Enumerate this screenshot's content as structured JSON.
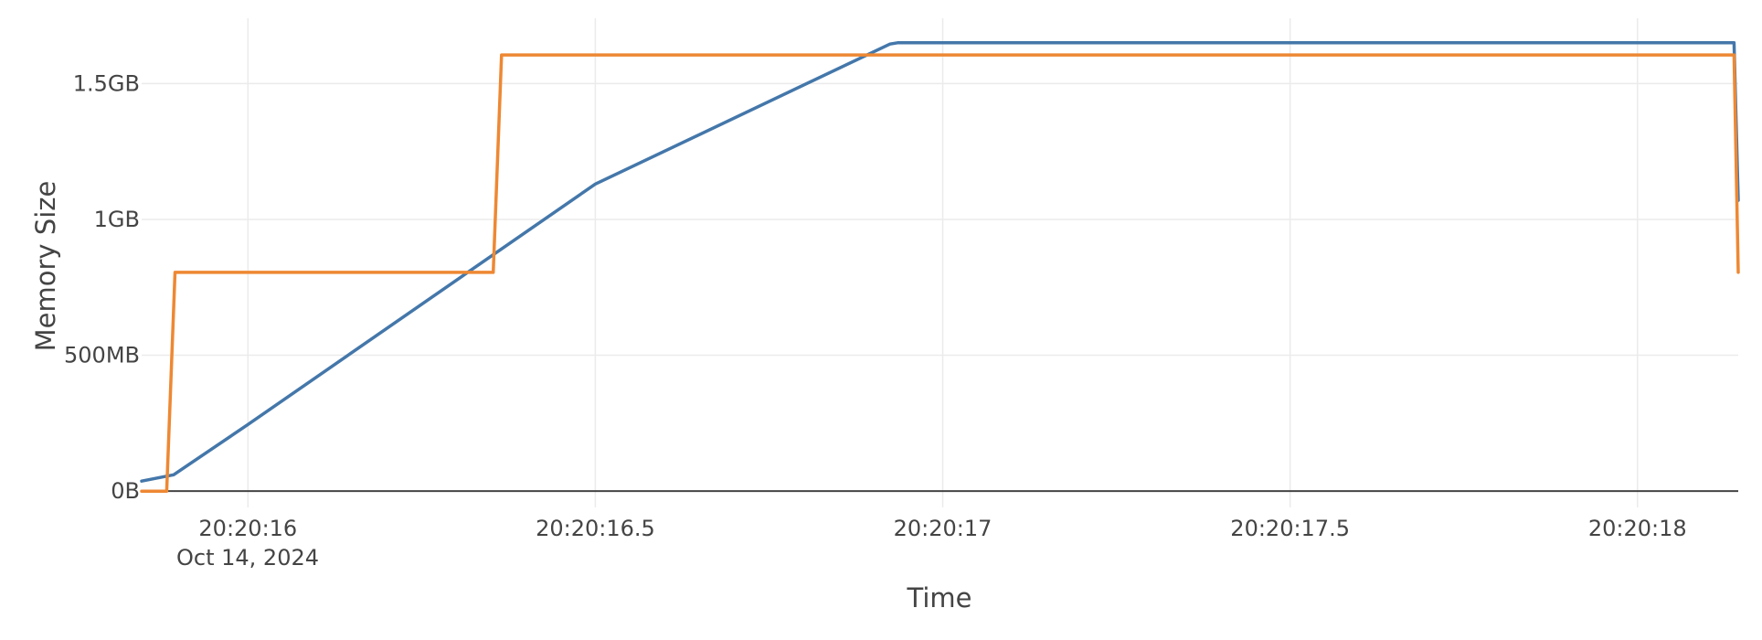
{
  "chart_data": {
    "type": "line",
    "title": "",
    "xlabel": "Time",
    "ylabel": "Memory Size",
    "date_label": "Oct 14, 2024",
    "x_ticks": [
      {
        "value": "20:20:16.000",
        "label": "20:20:16"
      },
      {
        "value": "20:20:16.500",
        "label": "20:20:16.5"
      },
      {
        "value": "20:20:17.000",
        "label": "20:20:17"
      },
      {
        "value": "20:20:17.500",
        "label": "20:20:17.5"
      },
      {
        "value": "20:20:18.000",
        "label": "20:20:18"
      }
    ],
    "xlim": [
      "20:20:15.847",
      "20:20:18.145"
    ],
    "y_unit": "MB",
    "y_ticks": [
      {
        "value": 0,
        "label": "0B"
      },
      {
        "value": 500,
        "label": "500MB"
      },
      {
        "value": 1000,
        "label": "1GB"
      },
      {
        "value": 1500,
        "label": "1.5GB"
      }
    ],
    "ylim": [
      -60,
      1740
    ],
    "grid": true,
    "legend": "none",
    "series": [
      {
        "color": "#4477aa",
        "x": [
          "20:20:15.847",
          "20:20:15.893",
          "20:20:16.000",
          "20:20:16.500",
          "20:20:16.924",
          "20:20:16.935",
          "20:20:18.139",
          "20:20:18.145"
        ],
        "y": [
          37,
          60,
          245,
          1130,
          1645,
          1650,
          1650,
          1070
        ]
      },
      {
        "color": "#ee8833",
        "x": [
          "20:20:15.847",
          "20:20:15.883",
          "20:20:15.895",
          "20:20:16.353",
          "20:20:16.365",
          "20:20:18.139",
          "20:20:18.145"
        ],
        "y": [
          0,
          0,
          805,
          805,
          1605,
          1605,
          805
        ]
      }
    ]
  }
}
